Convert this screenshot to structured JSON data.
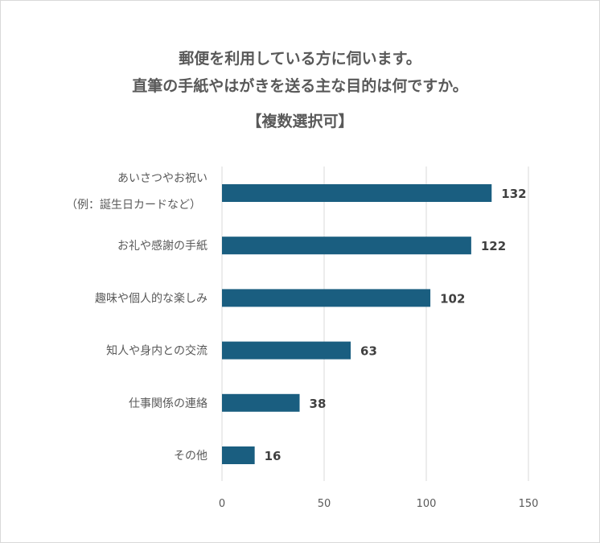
{
  "chart_data": {
    "type": "bar",
    "orientation": "horizontal",
    "title_lines": [
      "郵便を利用している方に伺います。",
      "直筆の手紙やはがきを送る主な目的は何ですか。",
      "【複数選択可】"
    ],
    "categories": [
      [
        "あいさつやお祝い",
        "（例：誕生日カードなど）"
      ],
      [
        "お礼や感謝の手紙"
      ],
      [
        "趣味や個人的な楽しみ"
      ],
      [
        "知人や身内との交流"
      ],
      [
        "仕事関係の連絡"
      ],
      [
        "その他"
      ]
    ],
    "values": [
      132,
      122,
      102,
      63,
      38,
      16
    ],
    "xlim": [
      0,
      150
    ],
    "xticks": [
      0,
      50,
      100,
      150
    ],
    "grid": true,
    "bar_color": "#1a5e80",
    "xlabel": "",
    "ylabel": ""
  }
}
